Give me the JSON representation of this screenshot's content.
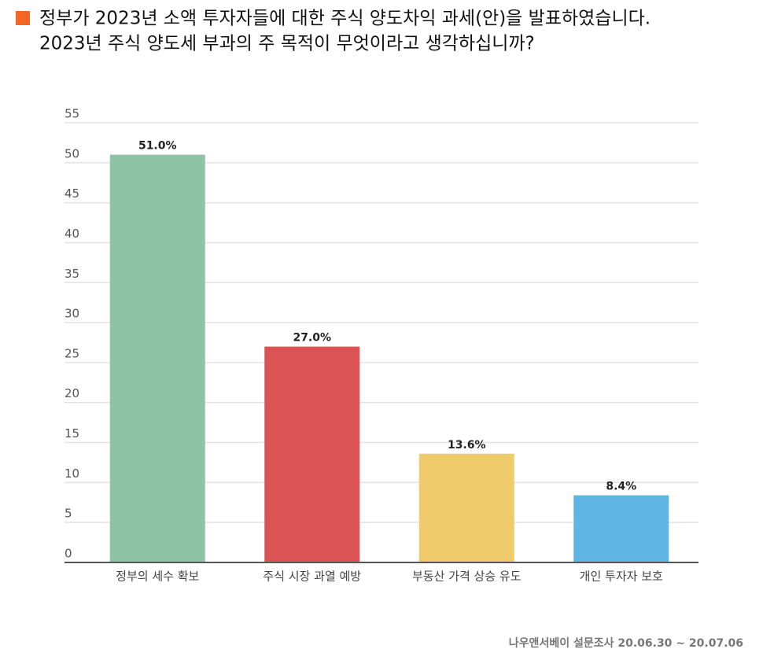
{
  "chart_data": {
    "type": "bar",
    "title_lines": [
      "정부가 2023년 소액 투자자들에 대한 주식 양도차익 과세(안)을 발표하였습니다.",
      "2023년 주식 양도세 부과의 주 목적이 무엇이라고 생각하십니까?"
    ],
    "categories": [
      "정부의 세수 확보",
      "주식 시장 과열 예방",
      "부동산 가격 상승 유도",
      "개인 투자자 보호"
    ],
    "values": [
      51.0,
      27.0,
      13.6,
      8.4
    ],
    "value_labels": [
      "51.0%",
      "27.0%",
      "13.6%",
      "8.4%"
    ],
    "colors": [
      "#8fc3a7",
      "#dc5356",
      "#f0cb6b",
      "#5fb6e5"
    ],
    "ylim": [
      0,
      55
    ],
    "yticks": [
      0,
      5,
      10,
      15,
      20,
      25,
      30,
      35,
      40,
      45,
      50,
      55
    ],
    "grid": true,
    "source": "나우앤서베이 설문조사 20.06.30 ~ 20.07.06"
  }
}
